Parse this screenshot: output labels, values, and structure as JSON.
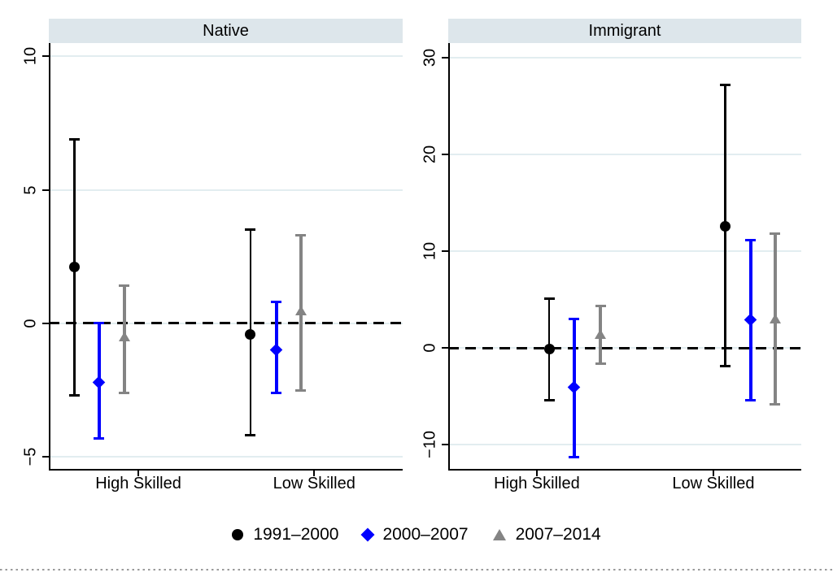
{
  "figure": {
    "colors": {
      "band": "#dde6eb",
      "grid": "#e2edf0",
      "axis": "#000000",
      "zero_line": "#000000"
    },
    "legend": [
      {
        "label": "1991–2000",
        "marker": "circle",
        "color": "#000000"
      },
      {
        "label": "2000–2007",
        "marker": "diamond",
        "color": "#0000ff"
      },
      {
        "label": "2007–2014",
        "marker": "triangle",
        "color": "#848484"
      }
    ]
  },
  "chart_data": [
    {
      "type": "scatter",
      "panel": "Native",
      "ylim": [
        -5.45,
        10.5
      ],
      "yticks": [
        10,
        5,
        0,
        -5
      ],
      "grid": true,
      "zero_line_dashed": true,
      "categories": [
        {
          "label": "High Skilled",
          "xfrac": 0.253
        },
        {
          "label": "Low Skilled",
          "xfrac": 0.75
        }
      ],
      "series": [
        {
          "name": "1991–2000",
          "marker": "circle",
          "color": "#000000",
          "points": [
            {
              "category": "High Skilled",
              "xfrac": 0.072,
              "est": 2.1,
              "lo": -2.7,
              "hi": 6.9
            },
            {
              "category": "Low Skilled",
              "xfrac": 0.57,
              "est": -0.4,
              "lo": -4.2,
              "hi": 3.5
            }
          ]
        },
        {
          "name": "2000–2007",
          "marker": "diamond",
          "color": "#0000ff",
          "points": [
            {
              "category": "High Skilled",
              "xfrac": 0.142,
              "est": -2.2,
              "lo": -4.3,
              "hi": 0.0
            },
            {
              "category": "Low Skilled",
              "xfrac": 0.643,
              "est": -1.0,
              "lo": -2.6,
              "hi": 0.8
            }
          ]
        },
        {
          "name": "2007–2014",
          "marker": "triangle",
          "color": "#848484",
          "points": [
            {
              "category": "High Skilled",
              "xfrac": 0.213,
              "est": -0.5,
              "lo": -2.6,
              "hi": 1.4
            },
            {
              "category": "Low Skilled",
              "xfrac": 0.712,
              "est": 0.5,
              "lo": -2.5,
              "hi": 3.3
            }
          ]
        }
      ]
    },
    {
      "type": "scatter",
      "panel": "Immigrant",
      "ylim": [
        -12.5,
        31.5
      ],
      "yticks": [
        30,
        20,
        10,
        0,
        -10
      ],
      "grid": true,
      "zero_line_dashed": true,
      "categories": [
        {
          "label": "High Skilled",
          "xfrac": 0.251
        },
        {
          "label": "Low Skilled",
          "xfrac": 0.751
        }
      ],
      "series": [
        {
          "name": "1991–2000",
          "marker": "circle",
          "color": "#000000",
          "points": [
            {
              "category": "High Skilled",
              "xfrac": 0.286,
              "est": -0.1,
              "lo": -5.4,
              "hi": 5.1
            },
            {
              "category": "Low Skilled",
              "xfrac": 0.785,
              "est": 12.6,
              "lo": -1.9,
              "hi": 27.2
            }
          ]
        },
        {
          "name": "2000–2007",
          "marker": "diamond",
          "color": "#0000ff",
          "points": [
            {
              "category": "High Skilled",
              "xfrac": 0.357,
              "est": -4.1,
              "lo": -11.3,
              "hi": 3.0
            },
            {
              "category": "Low Skilled",
              "xfrac": 0.857,
              "est": 2.9,
              "lo": -5.4,
              "hi": 11.1
            }
          ]
        },
        {
          "name": "2007–2014",
          "marker": "triangle",
          "color": "#848484",
          "points": [
            {
              "category": "High Skilled",
              "xfrac": 0.431,
              "est": 1.4,
              "lo": -1.6,
              "hi": 4.3
            },
            {
              "category": "Low Skilled",
              "xfrac": 0.926,
              "est": 3.0,
              "lo": -5.8,
              "hi": 11.8
            }
          ]
        }
      ]
    }
  ]
}
